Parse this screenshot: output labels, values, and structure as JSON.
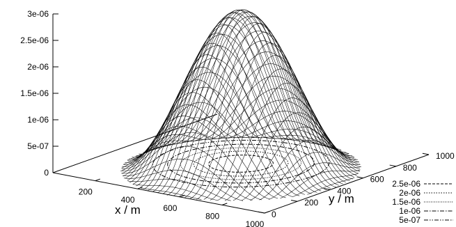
{
  "chart_data": {
    "type": "surface3d",
    "title": "",
    "xlabel": "x / m",
    "ylabel": "y / m",
    "zlabel": "",
    "xlim": [
      0,
      1000
    ],
    "ylim": [
      0,
      1000
    ],
    "zlim": [
      0,
      3e-06
    ],
    "x_ticks": [
      "200",
      "400",
      "600",
      "800",
      "1000"
    ],
    "y_ticks": [
      "0",
      "200",
      "400",
      "600",
      "800",
      "1000"
    ],
    "z_ticks": [
      "0",
      "5e-07",
      "1e-06",
      "1.5e-06",
      "2e-06",
      "2.5e-06",
      "3e-06"
    ],
    "surface": {
      "center": [
        500,
        500
      ],
      "peak": 3e-06,
      "radius": 450,
      "grid_lines": 41
    },
    "contours": [
      {
        "level_label": "2.5e-06",
        "level": 2.5e-06,
        "dash": "4,2"
      },
      {
        "level_label": "2e-06",
        "level": 2e-06,
        "dash": "1.5,2"
      },
      {
        "level_label": "1.5e-06",
        "level": 1.5e-06,
        "dash": "1,1.5"
      },
      {
        "level_label": "1e-06",
        "level": 1e-06,
        "dash": "6,2,1.5,2"
      },
      {
        "level_label": "5e-07",
        "level": 5e-07,
        "dash": "6,2,1.5,2,1.5,2"
      }
    ],
    "grid": false,
    "legend_position": "bottom-right"
  }
}
